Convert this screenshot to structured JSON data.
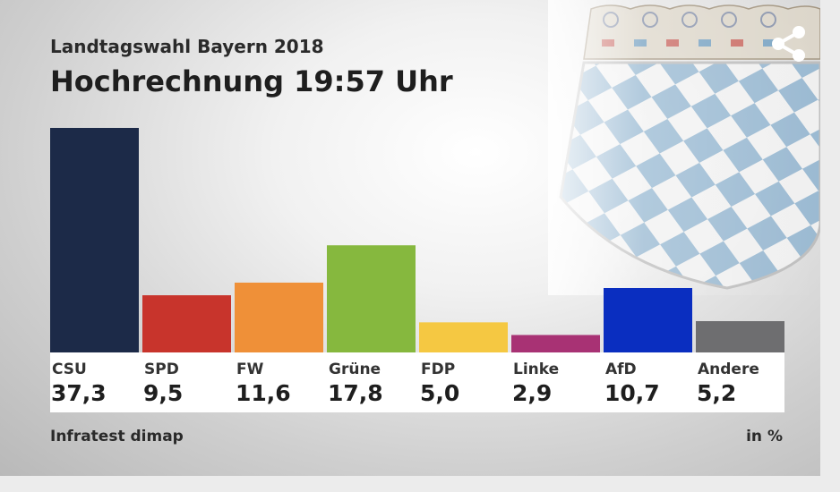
{
  "header": {
    "supertitle": "Landtagswahl Bayern 2018",
    "title": "Hochrechnung 19:57 Uhr"
  },
  "footer": {
    "source": "Infratest dimap",
    "unit": "in %"
  },
  "icons": {
    "share": "share-icon",
    "emblem": "bavarian-coat-of-arms"
  },
  "chart_data": {
    "type": "bar",
    "title": "Hochrechnung 19:57 Uhr",
    "categories": [
      "CSU",
      "SPD",
      "FW",
      "Grüne",
      "FDP",
      "Linke",
      "AfD",
      "Andere"
    ],
    "values": [
      37.3,
      9.5,
      11.6,
      17.8,
      5.0,
      2.9,
      10.7,
      5.2
    ],
    "value_labels": [
      "37,3",
      "9,5",
      "11,6",
      "17,8",
      "5,0",
      "2,9",
      "10,7",
      "5,2"
    ],
    "colors": [
      "#1c2a48",
      "#c8342c",
      "#ef9038",
      "#86b83e",
      "#f5c842",
      "#a83274",
      "#0a2ec0",
      "#6e6e70"
    ],
    "unit": "in %",
    "ylim": [
      0,
      37.3
    ],
    "grid": false
  }
}
